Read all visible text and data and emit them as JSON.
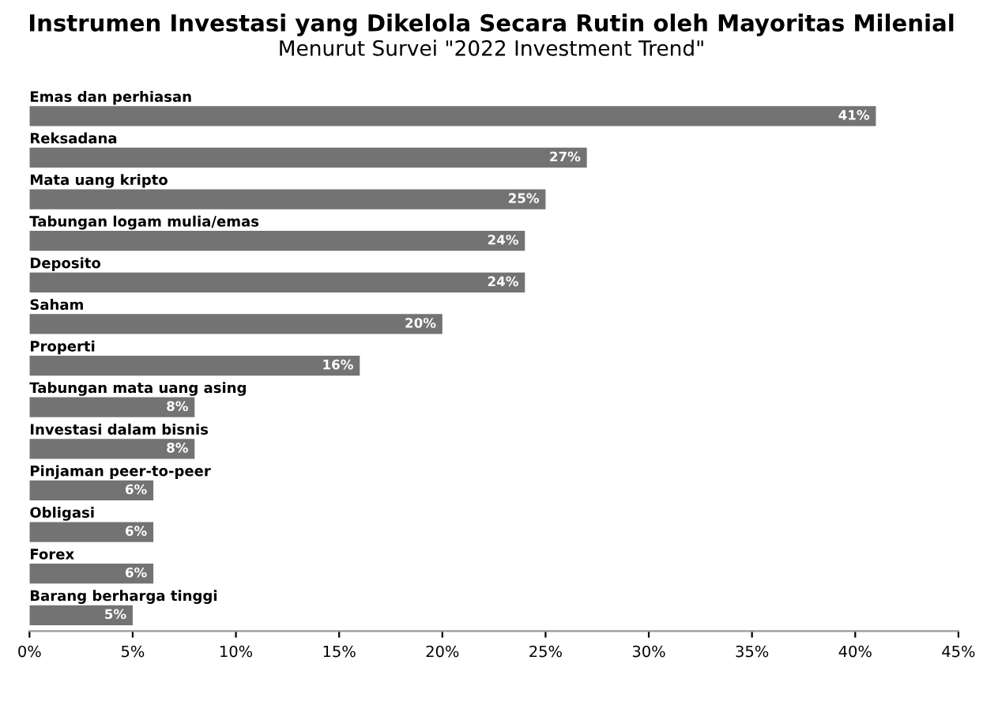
{
  "chart_data": {
    "type": "bar",
    "orientation": "horizontal",
    "title": "Instrumen Investasi yang Dikelola Secara Rutin oleh Mayoritas Milenial",
    "subtitle": "Menurut Survei \"2022 Investment Trend\"",
    "categories": [
      "Emas dan perhiasan",
      "Reksadana",
      "Mata uang kripto",
      "Tabungan logam mulia/emas",
      "Deposito",
      "Saham",
      "Properti",
      "Tabungan mata uang asing",
      "Investasi dalam bisnis",
      "Pinjaman peer-to-peer",
      "Obligasi",
      "Forex",
      "Barang berharga tinggi"
    ],
    "values": [
      41,
      27,
      25,
      24,
      24,
      20,
      16,
      8,
      8,
      6,
      6,
      6,
      5
    ],
    "value_labels": [
      "41%",
      "27%",
      "25%",
      "24%",
      "24%",
      "20%",
      "16%",
      "8%",
      "8%",
      "6%",
      "6%",
      "6%",
      "5%"
    ],
    "color": "#737373",
    "xlim": [
      0,
      45
    ],
    "xticks": [
      {
        "value": 0,
        "label": "0%"
      },
      {
        "value": 5,
        "label": "5%"
      },
      {
        "value": 10,
        "label": "10%"
      },
      {
        "value": 15,
        "label": "15%"
      },
      {
        "value": 20,
        "label": "20%"
      },
      {
        "value": 25,
        "label": "25%"
      },
      {
        "value": 30,
        "label": "30%"
      },
      {
        "value": 35,
        "label": "35%"
      },
      {
        "value": 40,
        "label": "40%"
      },
      {
        "value": 45,
        "label": "45%"
      }
    ],
    "grid": false
  }
}
